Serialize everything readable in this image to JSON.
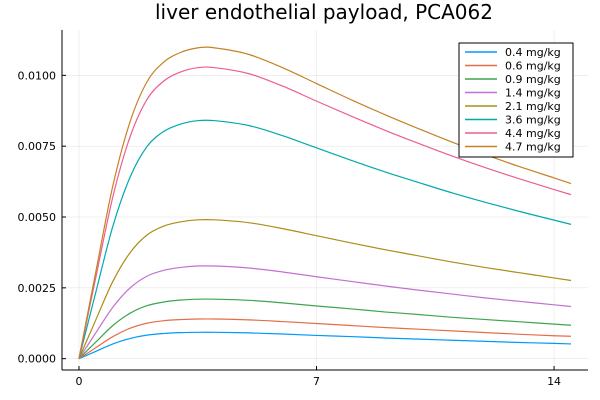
{
  "chart_data": {
    "type": "line",
    "title": "liver endothelial payload, PCA062",
    "xlabel": "",
    "ylabel": "",
    "xlim": [
      -0.5,
      15.0
    ],
    "ylim": [
      -0.0004,
      0.0116
    ],
    "x_ticks": [
      {
        "value": 0,
        "label": "0"
      },
      {
        "value": 7,
        "label": "7"
      },
      {
        "value": 14,
        "label": "14"
      }
    ],
    "y_ticks": [
      {
        "value": 0.0,
        "label": "0.0000"
      },
      {
        "value": 0.0025,
        "label": "0.0025"
      },
      {
        "value": 0.005,
        "label": "0.0050"
      },
      {
        "value": 0.0075,
        "label": "0.0075"
      },
      {
        "value": 0.01,
        "label": "0.0100"
      }
    ],
    "grid": true,
    "legend_position": "top-right",
    "x": [
      0,
      0.5,
      1,
      1.5,
      2,
      2.5,
      3,
      3.5,
      4,
      5,
      6,
      7,
      8,
      9,
      10,
      11,
      12,
      13,
      14,
      14.5
    ],
    "series": [
      {
        "name": "0.4 mg/kg",
        "color": "#009AFA",
        "values": [
          0,
          0.00026,
          0.00052,
          0.00071,
          0.00083,
          0.00089,
          0.00092,
          0.00093,
          0.00093,
          0.00091,
          0.00087,
          0.00082,
          0.00078,
          0.00073,
          0.00069,
          0.00065,
          0.00061,
          0.00057,
          0.00054,
          0.00052
        ]
      },
      {
        "name": "0.6 mg/kg",
        "color": "#E36F47",
        "values": [
          0,
          0.00039,
          0.00078,
          0.00107,
          0.00125,
          0.00134,
          0.00138,
          0.0014,
          0.0014,
          0.00137,
          0.00131,
          0.00124,
          0.00117,
          0.0011,
          0.00104,
          0.00098,
          0.00092,
          0.00086,
          0.00081,
          0.00079
        ]
      },
      {
        "name": "0.9 mg/kg",
        "color": "#3EA44E",
        "values": [
          0,
          0.00059,
          0.00117,
          0.0016,
          0.00187,
          0.002,
          0.00207,
          0.0021,
          0.0021,
          0.00206,
          0.00197,
          0.00186,
          0.00176,
          0.00165,
          0.00156,
          0.00146,
          0.00138,
          0.0013,
          0.00122,
          0.00118
        ]
      },
      {
        "name": "1.4 mg/kg",
        "color": "#C271D2",
        "values": [
          0,
          0.00092,
          0.00182,
          0.00249,
          0.00291,
          0.00312,
          0.00322,
          0.00327,
          0.00327,
          0.0032,
          0.00306,
          0.00289,
          0.00273,
          0.00257,
          0.00242,
          0.00228,
          0.00214,
          0.00202,
          0.0019,
          0.00184
        ]
      },
      {
        "name": "2.1 mg/kg",
        "color": "#AC8D18",
        "values": [
          0,
          0.00138,
          0.00273,
          0.00373,
          0.00436,
          0.00468,
          0.00483,
          0.0049,
          0.0049,
          0.0048,
          0.00459,
          0.00434,
          0.00409,
          0.00385,
          0.00363,
          0.00341,
          0.00321,
          0.00303,
          0.00285,
          0.00276
        ]
      },
      {
        "name": "3.6 mg/kg",
        "color": "#00A9AD",
        "values": [
          0,
          0.00236,
          0.00468,
          0.00639,
          0.00748,
          0.00802,
          0.00828,
          0.0084,
          0.0084,
          0.00823,
          0.00787,
          0.00744,
          0.00701,
          0.0066,
          0.00622,
          0.00585,
          0.00551,
          0.00519,
          0.00489,
          0.00474
        ]
      },
      {
        "name": "4.4 mg/kg",
        "color": "#ED5D92",
        "values": [
          0,
          0.00289,
          0.00572,
          0.00781,
          0.00914,
          0.0098,
          0.01012,
          0.01027,
          0.01027,
          0.01006,
          0.00962,
          0.00909,
          0.00857,
          0.00807,
          0.0076,
          0.00715,
          0.00673,
          0.00634,
          0.00597,
          0.00579
        ]
      },
      {
        "name": "4.7 mg/kg",
        "color": "#C68125",
        "values": [
          0,
          0.00309,
          0.00611,
          0.00834,
          0.00976,
          0.01047,
          0.01081,
          0.01097,
          0.01097,
          0.01074,
          0.01027,
          0.00971,
          0.00915,
          0.00862,
          0.00812,
          0.00764,
          0.00719,
          0.00677,
          0.00638,
          0.00618
        ]
      }
    ]
  }
}
